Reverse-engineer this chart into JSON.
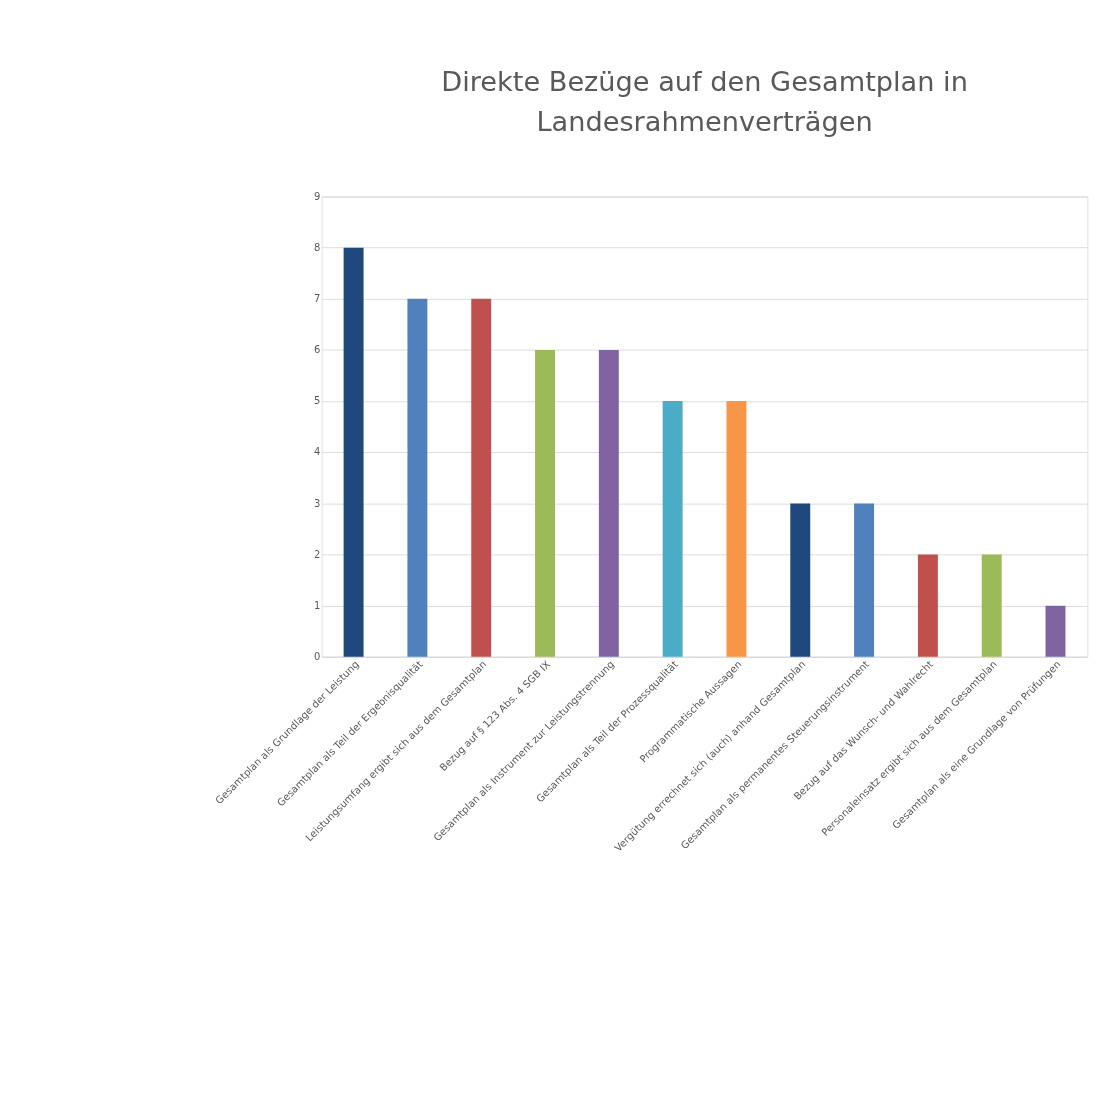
{
  "chart_data": {
    "type": "bar",
    "title": "Direkte Bezüge auf den Gesamtplan in Landesrahmenverträgen",
    "categories": [
      "Gesamtplan als Grundlage der Leistung",
      "Gesamtplan als Teil der Ergebnisqualität",
      "Leistungsumfang ergibt sich aus dem Gesamtplan",
      "Bezug auf § 123 Abs. 4 SGB IX",
      "Gesamtplan als Instrument zur Leistungstrennung",
      "Gesamtplan als Teil der Prozessqualität",
      "Programmatische Aussagen",
      "Vergütung errechnet sich (auch) anhand Gesamtplan",
      "Gesamtplan als permanentes Steuerungsinstrument",
      "Bezug auf das Wunsch- und Wahlrecht",
      "Personaleinsatz ergibt sich aus dem Gesamtplan",
      "Gesamtplan als eine Grundlage von Prüfungen"
    ],
    "values": [
      8,
      7,
      7,
      6,
      6,
      5,
      5,
      3,
      3,
      2,
      2,
      1
    ],
    "colors": [
      "#1f497d",
      "#4f81bd",
      "#c0504d",
      "#9bbb59",
      "#8064a2",
      "#4bacc6",
      "#f79646",
      "#1f497d",
      "#4f81bd",
      "#c0504d",
      "#9bbb59",
      "#8064a2"
    ],
    "ylim": [
      0,
      9
    ],
    "yticks": [
      0,
      1,
      2,
      3,
      4,
      5,
      6,
      7,
      8,
      9
    ],
    "grid": "y",
    "legend": false
  }
}
